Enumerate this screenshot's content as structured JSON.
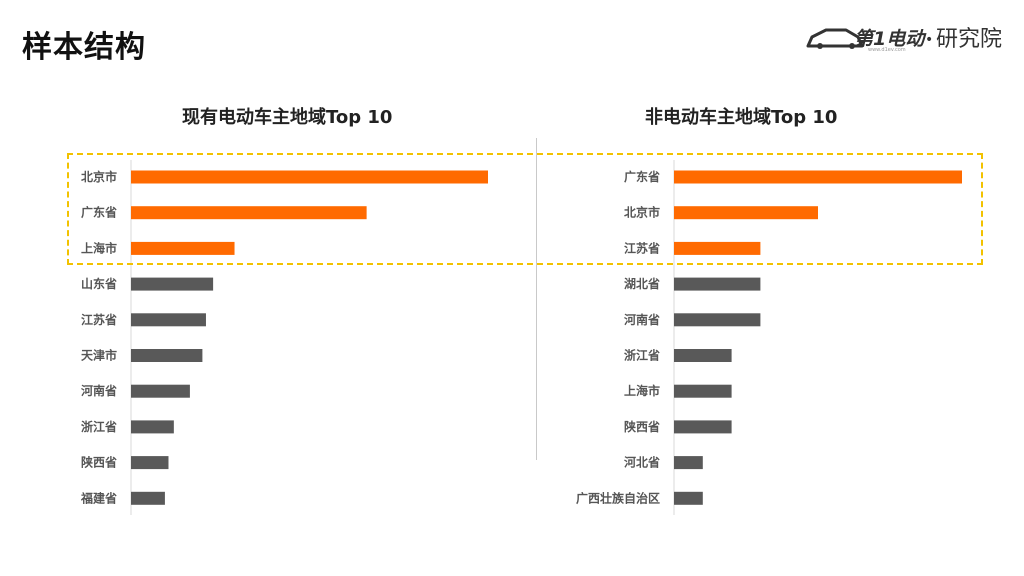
{
  "page": {
    "title": "样本结构"
  },
  "logo": {
    "brand_text": "第1电动",
    "dot": "•",
    "suffix": "研究院",
    "url_small": "www.d1ev.com"
  },
  "colors": {
    "highlight": "#FF6A00",
    "normal": "#595959",
    "frame": "#F2C200"
  },
  "chart_data": [
    {
      "type": "bar",
      "orientation": "horizontal",
      "title": "现有电动车主地域Top 10",
      "categories": [
        "北京市",
        "广东省",
        "上海市",
        "山东省",
        "江苏省",
        "天津市",
        "河南省",
        "浙江省",
        "陕西省",
        "福建省"
      ],
      "values": [
        100,
        66,
        29,
        23,
        21,
        20,
        16.5,
        12,
        10.5,
        9.5
      ],
      "highlighted": [
        true,
        true,
        true,
        false,
        false,
        false,
        false,
        false,
        false,
        false
      ],
      "xlim": [
        0,
        100
      ],
      "grid": false,
      "legend": "none"
    },
    {
      "type": "bar",
      "orientation": "horizontal",
      "title": "非电动车主地域Top 10",
      "categories": [
        "广东省",
        "北京市",
        "江苏省",
        "湖北省",
        "河南省",
        "浙江省",
        "上海市",
        "陕西省",
        "河北省",
        "广西壮族自治区"
      ],
      "values": [
        100,
        50,
        30,
        30,
        30,
        20,
        20,
        20,
        10,
        10
      ],
      "highlighted": [
        true,
        true,
        true,
        false,
        false,
        false,
        false,
        false,
        false,
        false
      ],
      "xlim": [
        0,
        100
      ],
      "grid": false,
      "legend": "none"
    }
  ]
}
